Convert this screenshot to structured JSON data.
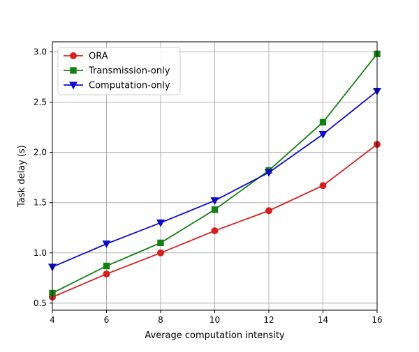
{
  "chart_data": {
    "type": "line",
    "title": "",
    "xlabel": "Average computation intensity",
    "ylabel": "Task delay (s)",
    "xlim": [
      4,
      16
    ],
    "ylim": [
      0.43,
      3.1
    ],
    "x_ticks": [
      4,
      6,
      8,
      10,
      12,
      14,
      16
    ],
    "y_ticks": [
      0.5,
      1.0,
      1.5,
      2.0,
      2.5,
      3.0
    ],
    "grid": true,
    "legend_position": "top-left",
    "x": [
      4,
      6,
      8,
      10,
      12,
      14,
      16
    ],
    "series": [
      {
        "name": "ORA",
        "color": "#d62020",
        "marker": "circle",
        "values": [
          0.56,
          0.79,
          1.0,
          1.22,
          1.42,
          1.67,
          2.08
        ]
      },
      {
        "name": "Transmission-only",
        "color": "#148014",
        "marker": "square",
        "values": [
          0.6,
          0.87,
          1.1,
          1.43,
          1.82,
          2.3,
          2.98
        ]
      },
      {
        "name": "Computation-only",
        "color": "#0a0ac8",
        "marker": "triangle-down",
        "values": [
          0.86,
          1.09,
          1.3,
          1.52,
          1.8,
          2.18,
          2.61
        ]
      }
    ]
  }
}
